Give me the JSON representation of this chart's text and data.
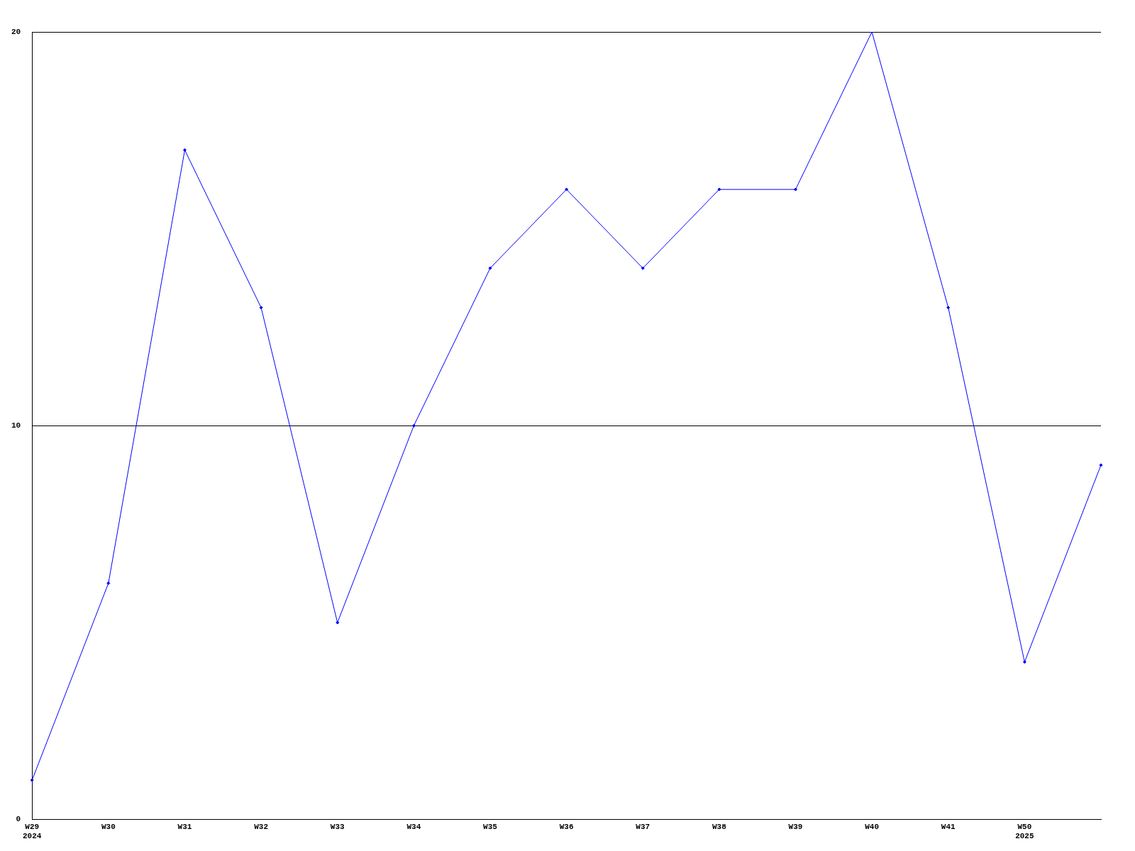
{
  "chart_data": {
    "type": "line",
    "categories": [
      "W29\n2024",
      "W30",
      "W31",
      "W32",
      "W33",
      "W34",
      "W35",
      "W36",
      "W37",
      "W38",
      "W39",
      "W40",
      "W41",
      "W50\n2025",
      null
    ],
    "series": [
      {
        "color": "#0000ff",
        "values": [
          1,
          6,
          17,
          13,
          5,
          10,
          14,
          16,
          14,
          16,
          16,
          20,
          13,
          4,
          9
        ]
      }
    ],
    "ylim": [
      0,
      20
    ],
    "yticks": [
      0,
      10,
      20
    ],
    "grid": "y",
    "legend": false,
    "marker": "diamond",
    "line_style": "solid"
  }
}
